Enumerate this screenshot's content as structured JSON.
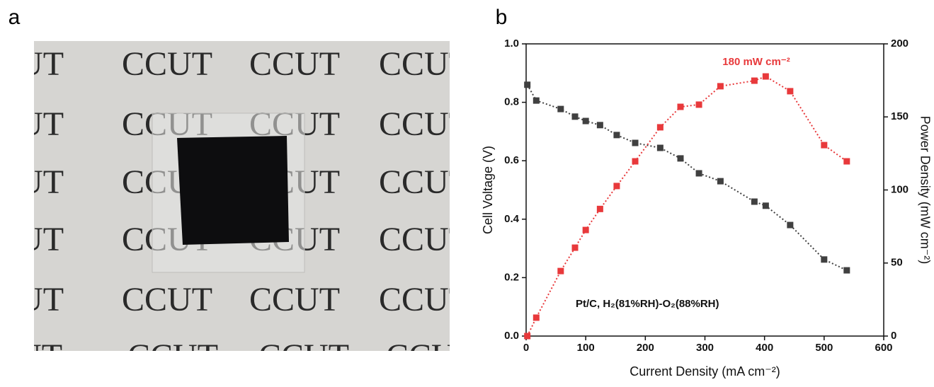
{
  "panel_labels": [
    "a",
    "b"
  ],
  "photo": {
    "watermark": "CCUT"
  },
  "chart_data": {
    "type": "line",
    "x_label": "Current Density (mA cm⁻²)",
    "y_label": "Cell Voltage (V)",
    "y2_label": "Power Density (mW cm⁻²)",
    "annotation": "180 mW cm⁻²",
    "legend_text": "Pt/C, H₂(81%RH)-O₂(88%RH)",
    "x": [
      2,
      17,
      58,
      82,
      100,
      124,
      152,
      183,
      225,
      259,
      290,
      326,
      383,
      402,
      443,
      500,
      538
    ],
    "series": [
      {
        "name": "Cell Voltage",
        "color": "#404040",
        "axis": "y",
        "values": [
          0.86,
          0.806,
          0.777,
          0.751,
          0.736,
          0.722,
          0.688,
          0.661,
          0.644,
          0.608,
          0.557,
          0.53,
          0.46,
          0.446,
          0.38,
          0.262,
          0.225
        ]
      },
      {
        "name": "Power Density",
        "color": "#e8393b",
        "axis": "y2",
        "values": [
          0,
          12.6,
          44.5,
          60.5,
          72.6,
          87,
          102.7,
          119.6,
          142.9,
          156.9,
          158.4,
          171,
          174.8,
          177.7,
          167.6,
          130.7,
          119.6
        ]
      }
    ],
    "xlim": [
      0,
      600
    ],
    "xticks": [
      0,
      100,
      200,
      300,
      400,
      500,
      600
    ],
    "ylim": [
      0,
      1.0
    ],
    "yticks": [
      {
        "value": 0,
        "label": "0.0"
      },
      0.2,
      0.4,
      0.6,
      0.8,
      {
        "value": 1.0,
        "label": "1.0"
      }
    ],
    "y2lim": [
      0,
      200
    ],
    "y2ticks": [
      0,
      50,
      100,
      150,
      200
    ]
  }
}
